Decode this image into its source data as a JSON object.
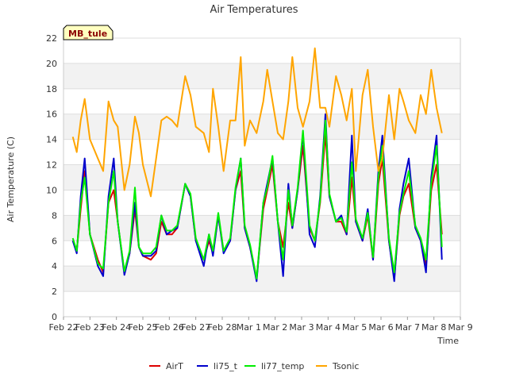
{
  "chart_data": {
    "type": "line",
    "title": "Air Temperatures",
    "xlabel": "Time",
    "ylabel": "Air Temperature (C)",
    "site_label": "MB_tule",
    "x_ticks": [
      "Feb 22",
      "Feb 23",
      "Feb 24",
      "Feb 25",
      "Feb 26",
      "Feb 27",
      "Feb 28",
      "Mar 1",
      "Mar 2",
      "Mar 3",
      "Mar 4",
      "Mar 5",
      "Mar 6",
      "Mar 7",
      "Mar 8",
      "Mar 9"
    ],
    "y_ticks": [
      0,
      2,
      4,
      6,
      8,
      10,
      12,
      14,
      16,
      18,
      20,
      22
    ],
    "xlim": [
      0,
      15
    ],
    "ylim": [
      0,
      22
    ],
    "grid": true,
    "legend_position": "bottom",
    "x": [
      0.35,
      0.5,
      0.65,
      0.8,
      1.0,
      1.3,
      1.5,
      1.7,
      1.9,
      2.05,
      2.3,
      2.5,
      2.7,
      2.85,
      3.0,
      3.3,
      3.5,
      3.7,
      3.9,
      4.1,
      4.3,
      4.6,
      4.8,
      5.0,
      5.3,
      5.5,
      5.65,
      5.85,
      6.05,
      6.3,
      6.5,
      6.7,
      6.85,
      7.05,
      7.3,
      7.55,
      7.7,
      7.9,
      8.1,
      8.3,
      8.5,
      8.65,
      8.85,
      9.05,
      9.3,
      9.5,
      9.7,
      9.9,
      10.05,
      10.3,
      10.5,
      10.7,
      10.9,
      11.05,
      11.3,
      11.5,
      11.7,
      11.9,
      12.05,
      12.3,
      12.5,
      12.7,
      12.85,
      13.05,
      13.3,
      13.5,
      13.7,
      13.9,
      14.1,
      14.3
    ],
    "series": [
      {
        "name": "AirT",
        "color": "#dd0000",
        "values": [
          6.0,
          5.2,
          8.5,
          11.5,
          6.5,
          4.5,
          3.5,
          9.0,
          10.0,
          7.5,
          3.5,
          5.0,
          8.5,
          5.5,
          4.8,
          4.5,
          5.0,
          7.5,
          6.5,
          6.5,
          7.0,
          10.5,
          9.5,
          6.0,
          4.5,
          6.0,
          5.0,
          8.0,
          5.2,
          6.0,
          10.0,
          11.5,
          7.0,
          5.5,
          3.0,
          8.5,
          10.0,
          12.0,
          7.5,
          5.5,
          9.0,
          7.0,
          10.0,
          13.5,
          7.0,
          6.0,
          9.0,
          14.5,
          9.5,
          7.5,
          7.5,
          6.5,
          11.0,
          7.5,
          6.0,
          8.0,
          4.5,
          10.5,
          12.5,
          6.0,
          3.0,
          8.0,
          9.5,
          10.5,
          7.0,
          6.0,
          4.0,
          10.0,
          12.0,
          6.5
        ]
      },
      {
        "name": "li75_t",
        "color": "#0000cc",
        "values": [
          6.0,
          5.0,
          9.5,
          12.5,
          6.5,
          4.0,
          3.2,
          9.5,
          12.5,
          7.5,
          3.3,
          5.0,
          9.0,
          5.5,
          4.8,
          4.8,
          5.2,
          8.0,
          6.5,
          6.8,
          7.0,
          10.5,
          9.5,
          6.0,
          4.0,
          6.5,
          4.8,
          8.0,
          5.0,
          6.0,
          10.0,
          12.5,
          7.0,
          5.5,
          2.8,
          9.0,
          10.5,
          12.5,
          7.5,
          3.2,
          10.5,
          7.0,
          10.0,
          14.5,
          6.5,
          5.5,
          9.5,
          16.0,
          9.5,
          7.5,
          8.0,
          6.5,
          14.3,
          7.5,
          6.0,
          8.5,
          4.5,
          11.5,
          14.3,
          6.0,
          2.8,
          8.5,
          10.5,
          12.5,
          7.0,
          6.0,
          3.5,
          11.0,
          14.3,
          4.5
        ]
      },
      {
        "name": "li77_temp",
        "color": "#00ee00",
        "values": [
          6.2,
          5.2,
          9.0,
          11.0,
          6.5,
          4.2,
          3.8,
          9.0,
          11.5,
          7.5,
          3.6,
          5.2,
          10.2,
          5.5,
          5.0,
          5.0,
          5.5,
          8.0,
          6.8,
          6.8,
          7.2,
          10.5,
          9.7,
          6.2,
          4.5,
          6.5,
          5.2,
          8.2,
          5.2,
          6.2,
          10.2,
          12.5,
          7.2,
          5.7,
          3.0,
          9.0,
          10.2,
          12.7,
          7.5,
          4.5,
          10.0,
          7.2,
          10.2,
          14.7,
          7.2,
          6.0,
          9.2,
          15.5,
          9.7,
          7.5,
          7.8,
          6.7,
          12.2,
          7.7,
          6.2,
          8.2,
          4.7,
          11.0,
          13.5,
          6.2,
          3.5,
          8.2,
          9.7,
          11.5,
          7.2,
          6.2,
          4.5,
          10.5,
          13.5,
          5.5
        ]
      },
      {
        "name": "Tsonic",
        "color": "#ffa500",
        "values": [
          14.2,
          13.0,
          15.5,
          17.2,
          14.0,
          12.5,
          11.5,
          17.0,
          15.5,
          15.0,
          10.0,
          12.0,
          15.8,
          14.5,
          12.0,
          9.5,
          12.5,
          15.5,
          15.8,
          15.5,
          15.0,
          19.0,
          17.5,
          15.0,
          14.5,
          13.0,
          18.0,
          15.0,
          11.5,
          15.5,
          15.5,
          20.5,
          13.5,
          15.5,
          14.5,
          17.0,
          19.5,
          17.0,
          14.5,
          14.0,
          17.0,
          20.5,
          16.5,
          15.0,
          17.0,
          21.2,
          16.5,
          16.5,
          15.0,
          19.0,
          17.5,
          15.5,
          18.0,
          11.5,
          17.5,
          19.5,
          15.0,
          11.5,
          12.5,
          17.5,
          14.0,
          18.0,
          17.0,
          15.5,
          14.5,
          17.5,
          16.0,
          19.5,
          16.5,
          14.5
        ]
      }
    ]
  }
}
